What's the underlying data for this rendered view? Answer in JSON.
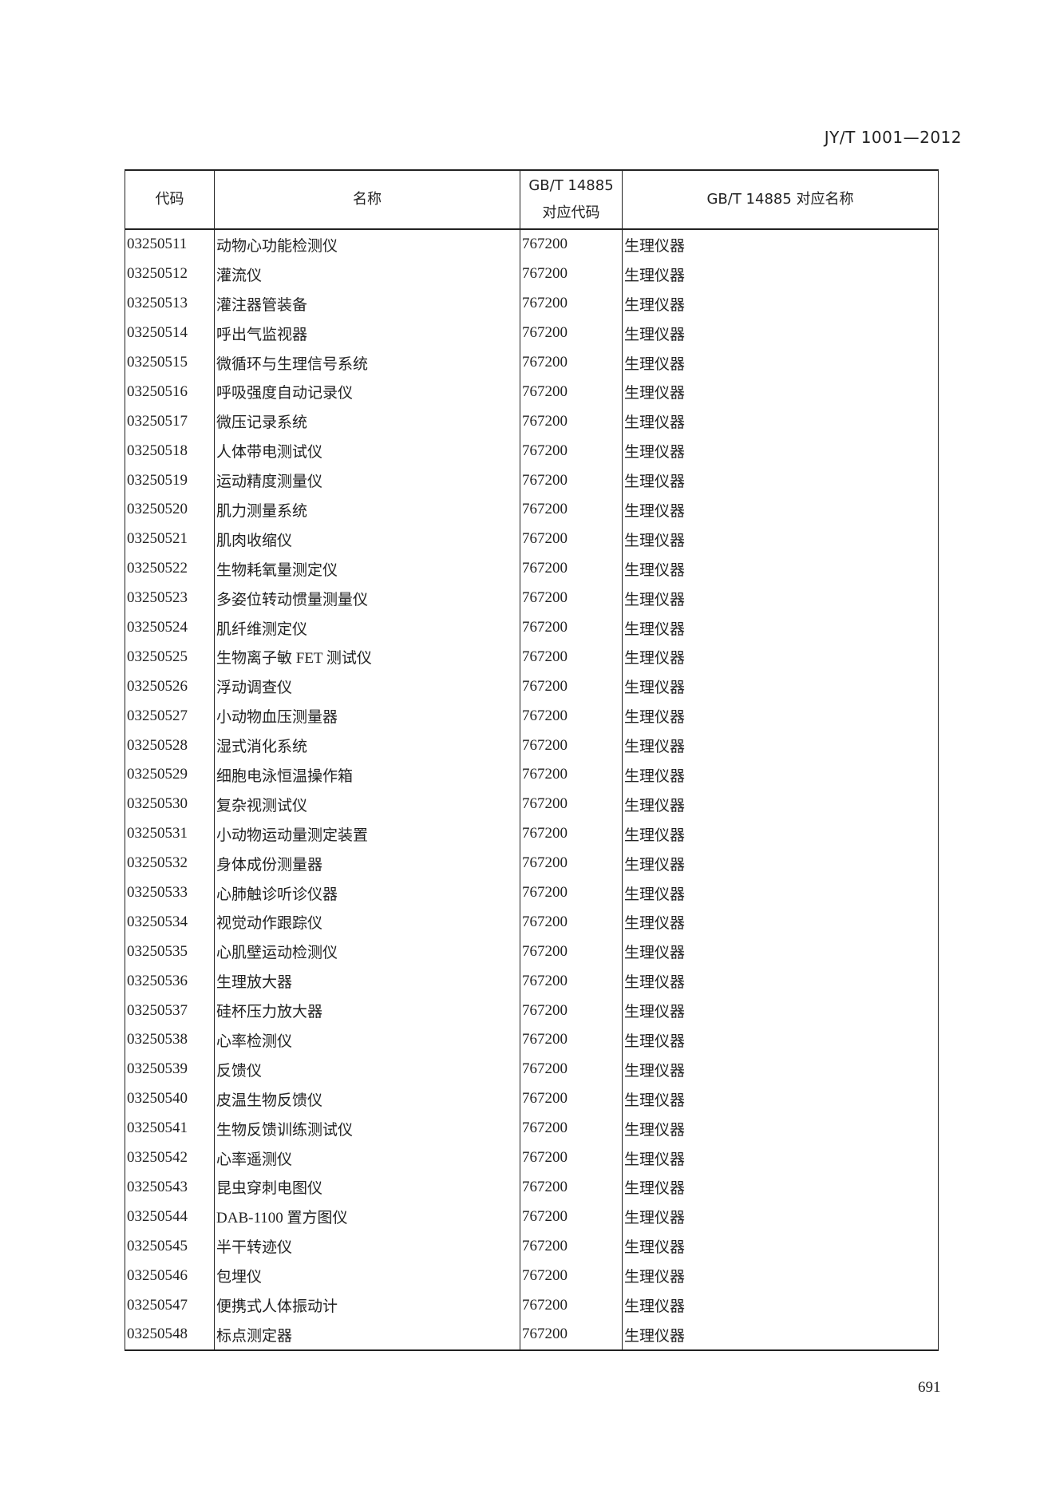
{
  "header": {
    "standard_no": "JY/T 1001—2012"
  },
  "table": {
    "columns": [
      "代码",
      "名称",
      "GB/T 14885\n对应代码",
      "GB/T 14885 对应名称"
    ],
    "column_lines": {
      "c3a": "GB/T 14885",
      "c3b": "对应代码"
    },
    "rows": [
      [
        "03250511",
        "动物心功能检测仪",
        "767200",
        "生理仪器"
      ],
      [
        "03250512",
        "灌流仪",
        "767200",
        "生理仪器"
      ],
      [
        "03250513",
        "灌注器管装备",
        "767200",
        "生理仪器"
      ],
      [
        "03250514",
        "呼出气监视器",
        "767200",
        "生理仪器"
      ],
      [
        "03250515",
        "微循环与生理信号系统",
        "767200",
        "生理仪器"
      ],
      [
        "03250516",
        "呼吸强度自动记录仪",
        "767200",
        "生理仪器"
      ],
      [
        "03250517",
        "微压记录系统",
        "767200",
        "生理仪器"
      ],
      [
        "03250518",
        "人体带电测试仪",
        "767200",
        "生理仪器"
      ],
      [
        "03250519",
        "运动精度测量仪",
        "767200",
        "生理仪器"
      ],
      [
        "03250520",
        "肌力测量系统",
        "767200",
        "生理仪器"
      ],
      [
        "03250521",
        "肌肉收缩仪",
        "767200",
        "生理仪器"
      ],
      [
        "03250522",
        "生物耗氧量测定仪",
        "767200",
        "生理仪器"
      ],
      [
        "03250523",
        "多姿位转动惯量测量仪",
        "767200",
        "生理仪器"
      ],
      [
        "03250524",
        "肌纤维测定仪",
        "767200",
        "生理仪器"
      ],
      [
        "03250525",
        "生物离子敏 FET 测试仪",
        "767200",
        "生理仪器"
      ],
      [
        "03250526",
        "浮动调查仪",
        "767200",
        "生理仪器"
      ],
      [
        "03250527",
        "小动物血压测量器",
        "767200",
        "生理仪器"
      ],
      [
        "03250528",
        "湿式消化系统",
        "767200",
        "生理仪器"
      ],
      [
        "03250529",
        "细胞电泳恒温操作箱",
        "767200",
        "生理仪器"
      ],
      [
        "03250530",
        "复杂视测试仪",
        "767200",
        "生理仪器"
      ],
      [
        "03250531",
        "小动物运动量测定装置",
        "767200",
        "生理仪器"
      ],
      [
        "03250532",
        "身体成份测量器",
        "767200",
        "生理仪器"
      ],
      [
        "03250533",
        "心肺触诊听诊仪器",
        "767200",
        "生理仪器"
      ],
      [
        "03250534",
        "视觉动作跟踪仪",
        "767200",
        "生理仪器"
      ],
      [
        "03250535",
        "心肌壁运动检测仪",
        "767200",
        "生理仪器"
      ],
      [
        "03250536",
        "生理放大器",
        "767200",
        "生理仪器"
      ],
      [
        "03250537",
        "硅杯压力放大器",
        "767200",
        "生理仪器"
      ],
      [
        "03250538",
        "心率检测仪",
        "767200",
        "生理仪器"
      ],
      [
        "03250539",
        "反馈仪",
        "767200",
        "生理仪器"
      ],
      [
        "03250540",
        "皮温生物反馈仪",
        "767200",
        "生理仪器"
      ],
      [
        "03250541",
        "生物反馈训练测试仪",
        "767200",
        "生理仪器"
      ],
      [
        "03250542",
        "心率遥测仪",
        "767200",
        "生理仪器"
      ],
      [
        "03250543",
        "昆虫穿刺电图仪",
        "767200",
        "生理仪器"
      ],
      [
        "03250544",
        "DAB-1100  置方图仪",
        "767200",
        "生理仪器"
      ],
      [
        "03250545",
        "半干转迹仪",
        "767200",
        "生理仪器"
      ],
      [
        "03250546",
        "包埋仪",
        "767200",
        "生理仪器"
      ],
      [
        "03250547",
        "便携式人体振动计",
        "767200",
        "生理仪器"
      ],
      [
        "03250548",
        "标点测定器",
        "767200",
        "生理仪器"
      ]
    ]
  },
  "footer": {
    "page_number": "691"
  }
}
